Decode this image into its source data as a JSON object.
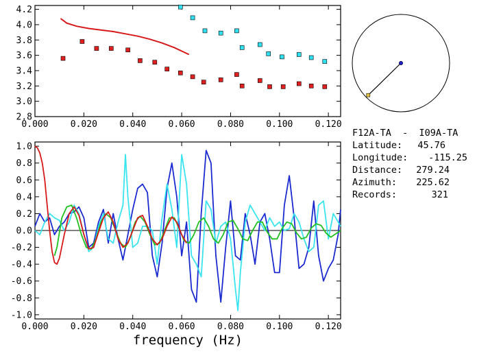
{
  "chart_data": [
    {
      "type": "scatter",
      "xlim": [
        0.0,
        0.125
      ],
      "ylim": [
        2.8,
        4.25
      ],
      "x_ticks": [
        "0.000",
        "0.020",
        "0.040",
        "0.060",
        "0.080",
        "0.100",
        "0.120"
      ],
      "y_ticks": [
        "2.8",
        "3.0",
        "3.2",
        "3.4",
        "3.6",
        "3.8",
        "4.0",
        "4.2"
      ],
      "colors": {
        "red_points": "#e02020",
        "cyan_points": "#30e0f0",
        "red_curve": "#d81818"
      },
      "series": [
        {
          "marker": "square",
          "color": "#e02020",
          "x": [
            0.0115,
            0.0193,
            0.0252,
            0.0312,
            0.038,
            0.043,
            0.049,
            0.054,
            0.0595,
            0.0645,
            0.069,
            0.076,
            0.0825,
            0.0847,
            0.092,
            0.096,
            0.1015,
            0.108,
            0.113,
            0.1185
          ],
          "y": [
            3.56,
            3.78,
            3.69,
            3.69,
            3.67,
            3.53,
            3.51,
            3.42,
            3.37,
            3.32,
            3.25,
            3.28,
            3.35,
            3.2,
            3.27,
            3.19,
            3.19,
            3.23,
            3.2,
            3.19
          ]
        },
        {
          "marker": "square",
          "color": "#30e0f0",
          "x": [
            0.0595,
            0.0645,
            0.0695,
            0.076,
            0.0825,
            0.0847,
            0.092,
            0.0955,
            0.101,
            0.108,
            0.113,
            0.1185
          ],
          "y": [
            4.23,
            4.09,
            3.92,
            3.89,
            3.92,
            3.7,
            3.74,
            3.62,
            3.58,
            3.61,
            3.57,
            3.52
          ]
        },
        {
          "line": true,
          "color": "#d81818",
          "x": [
            0.0105,
            0.013,
            0.017,
            0.022,
            0.027,
            0.032,
            0.037,
            0.042,
            0.047,
            0.052,
            0.057,
            0.063
          ],
          "y": [
            4.08,
            4.02,
            3.98,
            3.95,
            3.93,
            3.91,
            3.88,
            3.85,
            3.81,
            3.76,
            3.7,
            3.61
          ]
        }
      ]
    },
    {
      "type": "line",
      "xlabel": "frequency (Hz)",
      "xlim": [
        0.0,
        0.125
      ],
      "ylim": [
        -1.05,
        1.05
      ],
      "x_ticks": [
        "0.000",
        "0.020",
        "0.040",
        "0.060",
        "0.080",
        "0.100",
        "0.120"
      ],
      "y_ticks": [
        "1.0",
        "0.8",
        "0.6",
        "0.4",
        "0.2",
        "0.0",
        "-0.2",
        "-0.4",
        "-0.6",
        "-0.8",
        "-1.0"
      ],
      "zero_line": true,
      "series": [
        {
          "color": "#1a2ad0",
          "x": [
            0.0,
            0.002,
            0.004,
            0.006,
            0.008,
            0.01,
            0.012,
            0.014,
            0.016,
            0.018,
            0.02,
            0.022,
            0.024,
            0.026,
            0.028,
            0.03,
            0.032,
            0.034,
            0.036,
            0.038,
            0.04,
            0.042,
            0.044,
            0.046,
            0.048,
            0.05,
            0.052,
            0.054,
            0.056,
            0.058,
            0.06,
            0.062,
            0.064,
            0.066,
            0.068,
            0.07,
            0.072,
            0.074,
            0.076,
            0.078,
            0.08,
            0.082,
            0.084,
            0.086,
            0.088,
            0.09,
            0.092,
            0.094,
            0.096,
            0.098,
            0.1,
            0.102,
            0.104,
            0.106,
            0.108,
            0.11,
            0.112,
            0.114,
            0.116,
            0.118,
            0.12,
            0.122,
            0.124,
            0.125
          ],
          "y": [
            0.05,
            0.2,
            0.1,
            0.15,
            -0.05,
            0.05,
            0.1,
            0.2,
            0.22,
            0.28,
            0.15,
            -0.2,
            -0.15,
            0.1,
            0.25,
            -0.15,
            0.2,
            -0.1,
            -0.35,
            -0.05,
            0.25,
            0.5,
            0.55,
            0.45,
            -0.3,
            -0.55,
            -0.15,
            0.5,
            0.8,
            0.4,
            -0.3,
            0.1,
            -0.7,
            -0.85,
            0.2,
            0.95,
            0.8,
            -0.3,
            -0.85,
            -0.2,
            0.35,
            -0.3,
            -0.35,
            0.2,
            -0.05,
            -0.4,
            0.1,
            0.2,
            -0.1,
            -0.5,
            -0.5,
            0.3,
            0.65,
            0.15,
            -0.45,
            -0.4,
            -0.2,
            0.35,
            -0.3,
            -0.6,
            -0.45,
            -0.35,
            -0.05,
            0.25
          ]
        },
        {
          "color": "#38e4f0",
          "x": [
            0.0,
            0.002,
            0.004,
            0.006,
            0.008,
            0.01,
            0.012,
            0.014,
            0.016,
            0.018,
            0.02,
            0.022,
            0.024,
            0.026,
            0.028,
            0.03,
            0.032,
            0.034,
            0.036,
            0.037,
            0.038,
            0.04,
            0.042,
            0.044,
            0.046,
            0.048,
            0.05,
            0.052,
            0.054,
            0.056,
            0.058,
            0.06,
            0.062,
            0.064,
            0.066,
            0.068,
            0.07,
            0.072,
            0.074,
            0.076,
            0.078,
            0.08,
            0.082,
            0.083,
            0.084,
            0.086,
            0.088,
            0.09,
            0.092,
            0.094,
            0.096,
            0.098,
            0.1,
            0.102,
            0.104,
            0.106,
            0.108,
            0.11,
            0.112,
            0.114,
            0.116,
            0.118,
            0.12,
            0.122,
            0.124,
            0.125
          ],
          "y": [
            0.0,
            -0.05,
            0.1,
            0.2,
            0.15,
            0.12,
            0.0,
            0.1,
            0.3,
            0.2,
            -0.05,
            -0.25,
            -0.2,
            0.05,
            0.2,
            -0.1,
            -0.15,
            0.1,
            0.3,
            0.9,
            0.4,
            -0.2,
            -0.15,
            0.05,
            0.05,
            0.0,
            -0.4,
            0.15,
            0.55,
            0.25,
            -0.2,
            0.9,
            0.55,
            -0.3,
            -0.4,
            -0.55,
            0.35,
            0.25,
            -0.15,
            0.05,
            0.1,
            -0.1,
            -0.7,
            -0.95,
            -0.5,
            0.1,
            0.3,
            0.2,
            0.1,
            0.0,
            0.15,
            0.05,
            0.1,
            0.0,
            0.02,
            0.2,
            0.1,
            -0.1,
            -0.25,
            -0.2,
            0.3,
            0.35,
            -0.1,
            0.2,
            0.1,
            0.05
          ]
        },
        {
          "color": "#20c020",
          "x": [
            0.008,
            0.009,
            0.011,
            0.013,
            0.015,
            0.017,
            0.019,
            0.021,
            0.023,
            0.025,
            0.027,
            0.029,
            0.031,
            0.033,
            0.035,
            0.037,
            0.039,
            0.041,
            0.043,
            0.045,
            0.047,
            0.049,
            0.051,
            0.053,
            0.055,
            0.057,
            0.059,
            0.061,
            0.063,
            0.065,
            0.067,
            0.069,
            0.071,
            0.073,
            0.075,
            0.077,
            0.079,
            0.081,
            0.083,
            0.085,
            0.087,
            0.089,
            0.091,
            0.093,
            0.095,
            0.097,
            0.099,
            0.101,
            0.103,
            0.105,
            0.107,
            0.109,
            0.111,
            0.113,
            0.115,
            0.117,
            0.119,
            0.121,
            0.123,
            0.125
          ],
          "y": [
            -0.3,
            -0.2,
            0.15,
            0.28,
            0.3,
            0.15,
            -0.05,
            -0.2,
            -0.22,
            -0.1,
            0.1,
            0.2,
            0.15,
            0.0,
            -0.15,
            -0.2,
            -0.08,
            0.1,
            0.17,
            0.1,
            -0.05,
            -0.17,
            -0.15,
            0.0,
            0.15,
            0.15,
            0.02,
            -0.12,
            -0.15,
            -0.05,
            0.1,
            0.15,
            0.05,
            -0.1,
            -0.15,
            -0.05,
            0.1,
            0.12,
            0.02,
            -0.1,
            -0.12,
            0.0,
            0.1,
            0.1,
            -0.02,
            -0.1,
            -0.1,
            0.02,
            0.1,
            0.08,
            -0.03,
            -0.1,
            -0.08,
            0.03,
            0.08,
            0.06,
            -0.03,
            -0.08,
            -0.04,
            0.0
          ]
        },
        {
          "color": "#d81818",
          "x": [
            0.0,
            0.001,
            0.002,
            0.003,
            0.004,
            0.005,
            0.006,
            0.007,
            0.008,
            0.009,
            0.01,
            0.012,
            0.014,
            0.016,
            0.018,
            0.02,
            0.022,
            0.024,
            0.026,
            0.028,
            0.03,
            0.032,
            0.034,
            0.036,
            0.038,
            0.04,
            0.042,
            0.044,
            0.046,
            0.048,
            0.05,
            0.052,
            0.054,
            0.056,
            0.058,
            0.06,
            0.062
          ],
          "y": [
            1.0,
            0.98,
            0.92,
            0.8,
            0.6,
            0.3,
            0.0,
            -0.25,
            -0.38,
            -0.4,
            -0.33,
            -0.05,
            0.2,
            0.28,
            0.18,
            -0.05,
            -0.22,
            -0.2,
            -0.02,
            0.15,
            0.22,
            0.1,
            -0.1,
            -0.2,
            -0.15,
            0.0,
            0.15,
            0.18,
            0.05,
            -0.1,
            -0.17,
            -0.1,
            0.05,
            0.16,
            0.1,
            -0.05,
            -0.15
          ]
        }
      ]
    }
  ],
  "polar_map": {
    "colors": {
      "station_a": "#2020c0",
      "station_b": "#e0c040",
      "path": "#000000"
    },
    "azimuth_deg": 225.62,
    "relative_distance": 0.94
  },
  "info": {
    "station_pair": "F12A-TA  -  I09A-TA",
    "rows": [
      {
        "label": "Latitude:",
        "value": "45.76"
      },
      {
        "label": "Longitude:",
        "value": "-115.25"
      },
      {
        "label": "Distance:",
        "value": "279.24"
      },
      {
        "label": "Azimuth:",
        "value": "225.62"
      },
      {
        "label": "Records:",
        "value": "321"
      }
    ]
  }
}
